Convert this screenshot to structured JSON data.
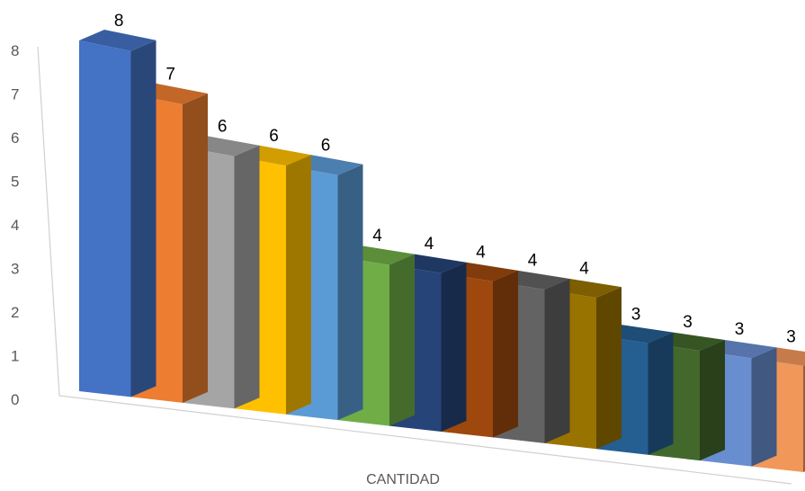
{
  "chart_data": {
    "type": "bar",
    "style": "3d-column",
    "xlabel": "CANTIDAD",
    "ylabel": "",
    "title": "",
    "ylim": [
      0,
      8
    ],
    "yticks": [
      "0",
      "1",
      "2",
      "3",
      "4",
      "5",
      "6",
      "7",
      "8"
    ],
    "grid": false,
    "legend": "none",
    "series": [
      {
        "value": 8,
        "color": "#4472C4"
      },
      {
        "value": 7,
        "color": "#ED7D31"
      },
      {
        "value": 6,
        "color": "#A5A5A5"
      },
      {
        "value": 6,
        "color": "#FFC000"
      },
      {
        "value": 6,
        "color": "#5B9BD5"
      },
      {
        "value": 4,
        "color": "#70AD47"
      },
      {
        "value": 4,
        "color": "#264478"
      },
      {
        "value": 4,
        "color": "#9E480E"
      },
      {
        "value": 4,
        "color": "#636363"
      },
      {
        "value": 4,
        "color": "#997300"
      },
      {
        "value": 3,
        "color": "#255E91"
      },
      {
        "value": 3,
        "color": "#43682B"
      },
      {
        "value": 3,
        "color": "#698ED0"
      },
      {
        "value": 3,
        "color": "#F1975A"
      }
    ]
  }
}
